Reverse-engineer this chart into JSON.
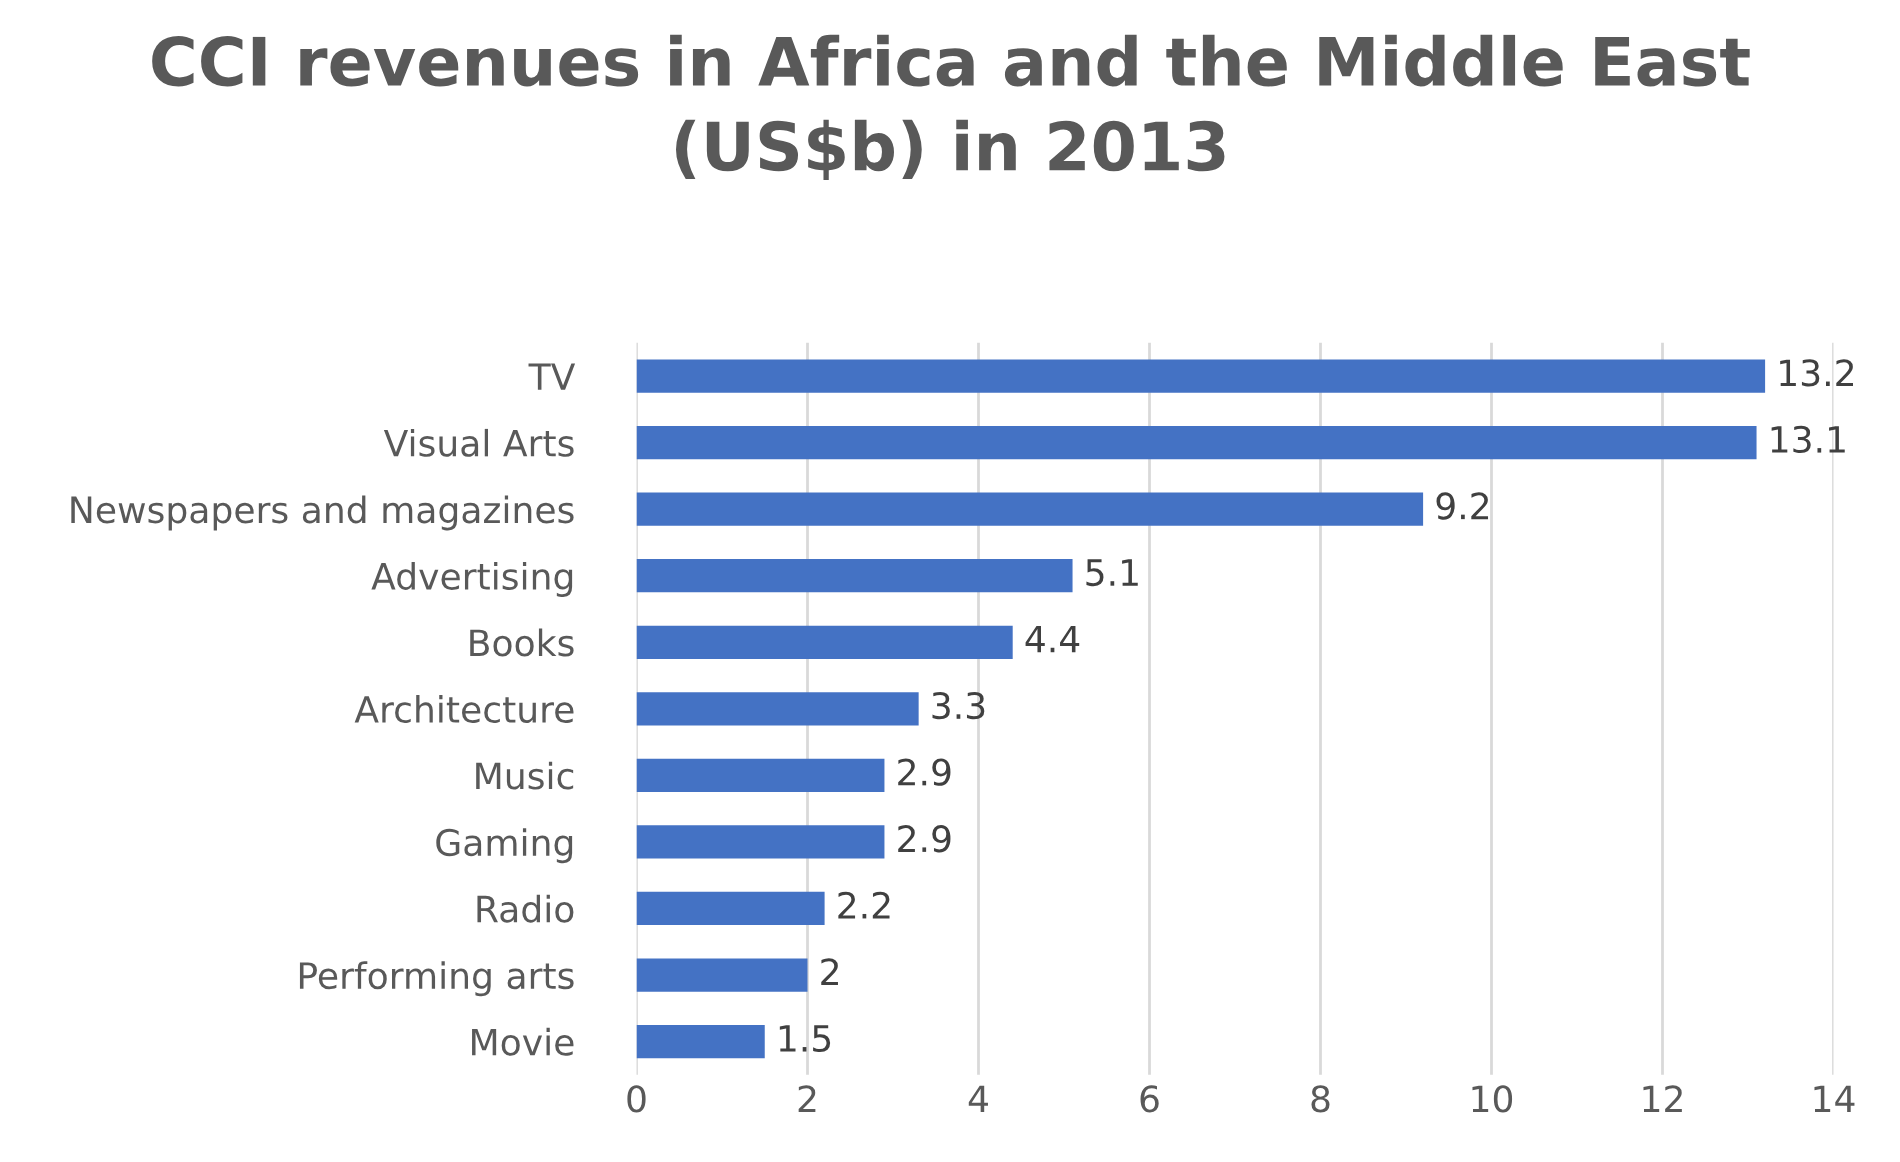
{
  "chart_data": {
    "type": "bar",
    "orientation": "horizontal",
    "title": "CCI revenues in Africa and the Middle East\n(US$b) in 2013",
    "categories": [
      "TV",
      "Visual Arts",
      "Newspapers and magazines",
      "Advertising",
      "Books",
      "Architecture",
      "Music",
      "Gaming",
      "Radio",
      "Performing arts",
      "Movie"
    ],
    "values": [
      13.2,
      13.1,
      9.2,
      5.1,
      4.4,
      3.3,
      2.9,
      2.9,
      2.2,
      2,
      1.5
    ],
    "color": "#4472c4",
    "xlim": [
      0,
      14
    ],
    "xticks": [
      0,
      2,
      4,
      6,
      8,
      10,
      12,
      14
    ],
    "grid": "x",
    "data_labels": true
  }
}
